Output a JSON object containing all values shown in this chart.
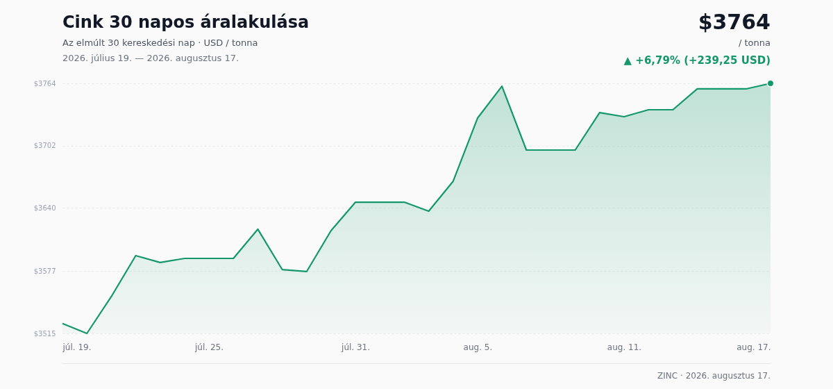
{
  "chart_data": {
    "type": "area",
    "title": "Cink 30 napos áralakulása",
    "subtitle": "Az elmúlt 30 kereskedési nap · USD / tonna",
    "annotations": [
      "2026. július 19. — 2026. augusztus 17.",
      "$3764",
      "/ tonna",
      "▲ +6,79% (+239,25 USD)",
      "ZINC · 2026. augusztus 17."
    ],
    "x": [
      "2026-07-19",
      "2026-07-20",
      "2026-07-21",
      "2026-07-22",
      "2026-07-23",
      "2026-07-24",
      "2026-07-25",
      "2026-07-26",
      "2026-07-27",
      "2026-07-28",
      "2026-07-29",
      "2026-07-30",
      "2026-07-31",
      "2026-08-01",
      "2026-08-02",
      "2026-08-03",
      "2026-08-04",
      "2026-08-05",
      "2026-08-06",
      "2026-08-07",
      "2026-08-08",
      "2026-08-09",
      "2026-08-10",
      "2026-08-11",
      "2026-08-12",
      "2026-08-13",
      "2026-08-14",
      "2026-08-15",
      "2026-08-16",
      "2026-08-17"
    ],
    "series": [
      {
        "color": "#13976b",
        "values": [
          3524.8,
          3515,
          3551.7,
          3592.5,
          3585.6,
          3589.7,
          3589.7,
          3589.7,
          3618.8,
          3578.6,
          3576.6,
          3617.4,
          3645.7,
          3645.7,
          3645.7,
          3636.7,
          3666.5,
          3729.4,
          3761.2,
          3697.6,
          3697.6,
          3697.6,
          3734.9,
          3730.8,
          3737.7,
          3737.7,
          3758.5,
          3758.5,
          3758.5,
          3764
        ]
      }
    ],
    "xlim": [
      "2026-07-19",
      "2026-08-17"
    ],
    "xticks": [
      {
        "value": "2026-07-19",
        "label": "júl. 19."
      },
      {
        "value": "2026-07-25",
        "label": "júl. 25."
      },
      {
        "value": "2026-07-31",
        "label": "júl. 31."
      },
      {
        "value": "2026-08-05",
        "label": "aug. 5."
      },
      {
        "value": "2026-08-11",
        "label": "aug. 11."
      },
      {
        "value": "2026-08-17",
        "label": "aug. 17."
      }
    ],
    "ylim": [
      3515,
      3764
    ],
    "yticks": [
      {
        "value": 3515,
        "label": "$3515"
      },
      {
        "value": 3577,
        "label": "$3577"
      },
      {
        "value": 3640,
        "label": "$3640"
      },
      {
        "value": 3702,
        "label": "$3702"
      },
      {
        "value": 3764,
        "label": "$3764"
      }
    ],
    "grid": "y"
  }
}
